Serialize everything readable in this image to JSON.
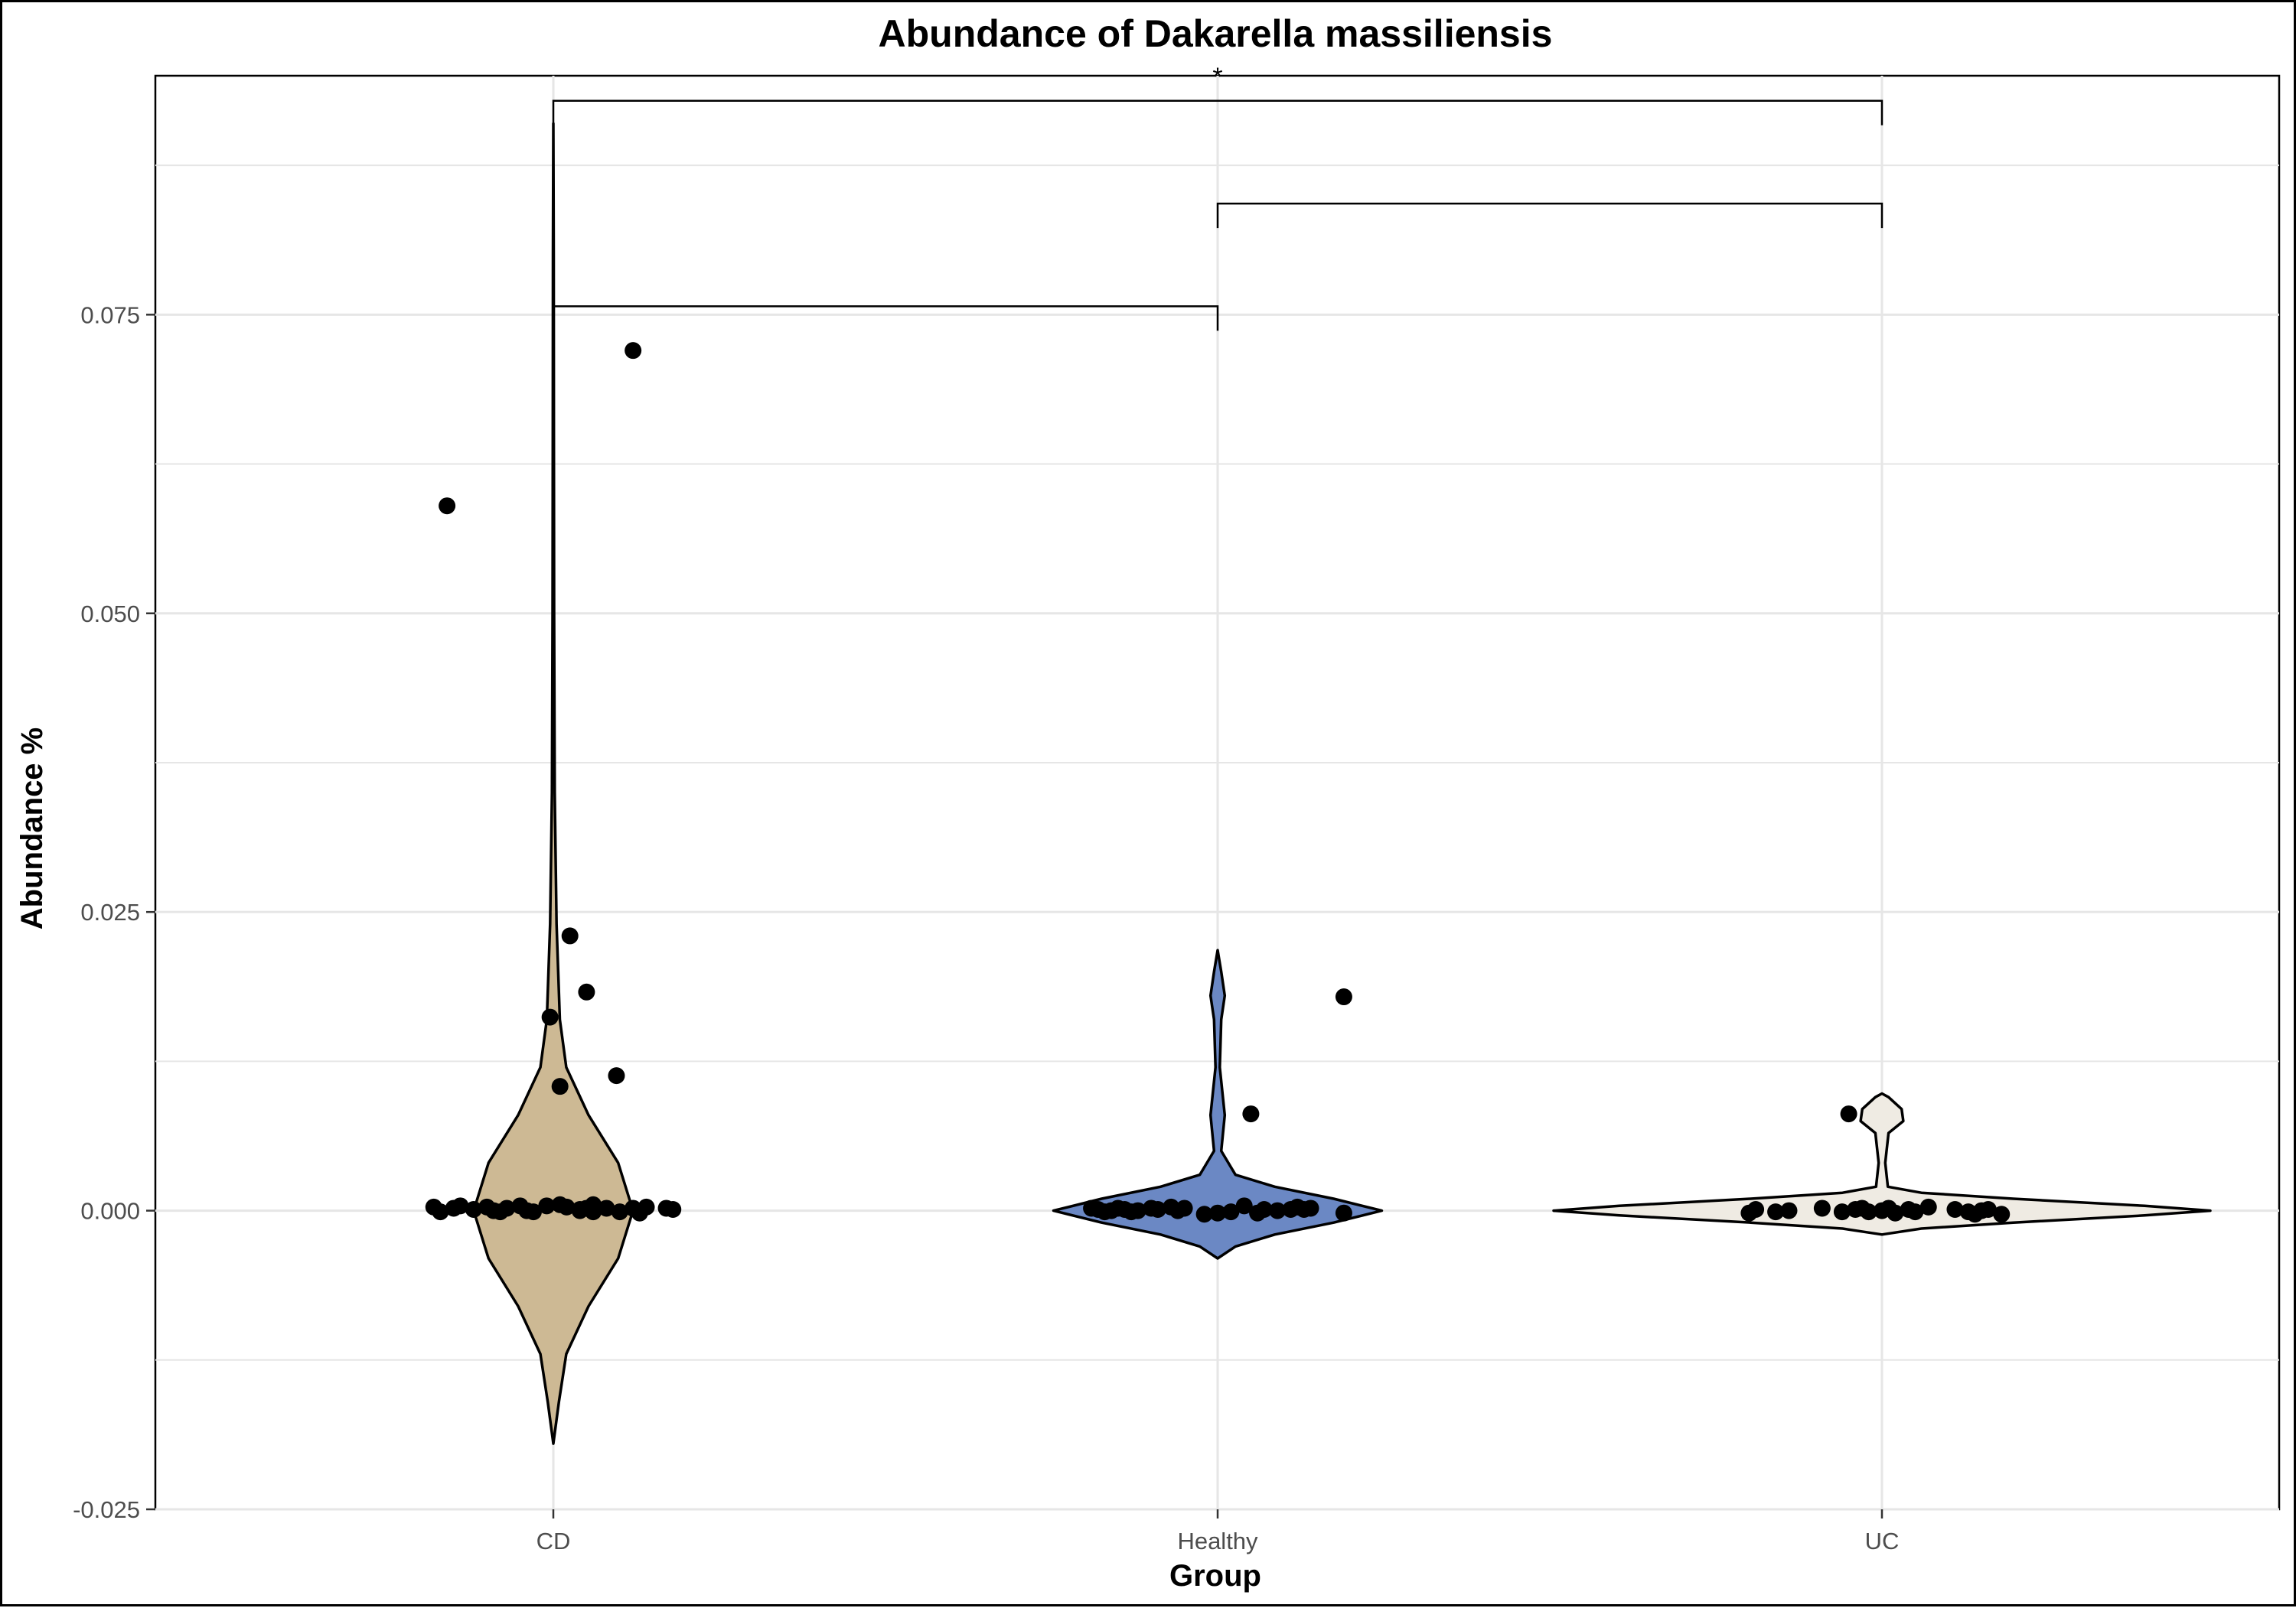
{
  "chart_data": {
    "type": "violin",
    "title": "Abundance of Dakarella massiliensis",
    "xlabel": "Group",
    "ylabel": "Abundance %",
    "categories": [
      "CD",
      "Healthy",
      "UC"
    ],
    "ylim": [
      -0.025,
      0.095
    ],
    "yticks": [
      -0.025,
      0.0,
      0.025,
      0.05,
      0.075
    ],
    "ytick_labels": [
      "-0.025",
      "0.000",
      "0.025",
      "0.050",
      "0.075"
    ],
    "grid": true,
    "legend": "none",
    "colors": {
      "CD": "#cdb994",
      "Healthy": "#6b88c4",
      "UC": "#efebe3"
    },
    "violins": [
      {
        "category": "CD",
        "profile": [
          [
            -0.0195,
            0.0
          ],
          [
            -0.016,
            0.06
          ],
          [
            -0.012,
            0.14
          ],
          [
            -0.008,
            0.38
          ],
          [
            -0.004,
            0.7
          ],
          [
            0.0,
            0.86
          ],
          [
            0.004,
            0.7
          ],
          [
            0.008,
            0.38
          ],
          [
            0.012,
            0.14
          ],
          [
            0.016,
            0.07
          ],
          [
            0.024,
            0.035
          ],
          [
            0.035,
            0.015
          ],
          [
            0.05,
            0.008
          ],
          [
            0.065,
            0.006
          ],
          [
            0.08,
            0.004
          ],
          [
            0.091,
            0.0
          ]
        ]
      },
      {
        "category": "Healthy",
        "profile": [
          [
            -0.004,
            0.0
          ],
          [
            -0.003,
            0.1
          ],
          [
            -0.002,
            0.32
          ],
          [
            -0.001,
            0.65
          ],
          [
            0.0,
            0.92
          ],
          [
            0.001,
            0.65
          ],
          [
            0.002,
            0.32
          ],
          [
            0.003,
            0.1
          ],
          [
            0.005,
            0.02
          ],
          [
            0.008,
            0.04
          ],
          [
            0.012,
            0.012
          ],
          [
            0.016,
            0.02
          ],
          [
            0.018,
            0.04
          ],
          [
            0.02,
            0.02
          ],
          [
            0.0218,
            0.0
          ]
        ]
      },
      {
        "category": "UC",
        "profile": [
          [
            -0.002,
            0.0
          ],
          [
            -0.0015,
            0.12
          ],
          [
            -0.001,
            0.4
          ],
          [
            -0.0004,
            0.8
          ],
          [
            0.0,
            1.0
          ],
          [
            0.0004,
            0.8
          ],
          [
            0.001,
            0.4
          ],
          [
            0.0015,
            0.12
          ],
          [
            0.002,
            0.018
          ],
          [
            0.004,
            0.01
          ],
          [
            0.0065,
            0.02
          ],
          [
            0.0075,
            0.065
          ],
          [
            0.0085,
            0.06
          ],
          [
            0.0095,
            0.02
          ],
          [
            0.0098,
            0.0
          ]
        ]
      }
    ],
    "points": {
      "CD": [
        [
          -0.18,
          0.0003
        ],
        [
          -0.17,
          -0.0001
        ],
        [
          -0.15,
          0.0002
        ],
        [
          -0.14,
          0.0004
        ],
        [
          -0.12,
          0.0001
        ],
        [
          -0.1,
          0.0003
        ],
        [
          -0.09,
          0.0
        ],
        [
          -0.08,
          -0.0001
        ],
        [
          -0.07,
          0.0002
        ],
        [
          -0.05,
          0.0004
        ],
        [
          -0.04,
          0.0
        ],
        [
          -0.03,
          -0.0001
        ],
        [
          -0.01,
          0.0004
        ],
        [
          0.01,
          0.0005
        ],
        [
          0.02,
          0.0003
        ],
        [
          0.04,
          0.0001
        ],
        [
          0.05,
          0.0002
        ],
        [
          0.06,
          0.0005
        ],
        [
          0.08,
          0.0002
        ],
        [
          0.1,
          -0.0001
        ],
        [
          0.12,
          0.0002
        ],
        [
          0.13,
          -0.0002
        ],
        [
          0.14,
          0.0003
        ],
        [
          0.17,
          0.0002
        ],
        [
          0.18,
          0.0001
        ],
        [
          0.06,
          -0.0001
        ],
        [
          0.04,
          0.0
        ],
        [
          -0.16,
          0.059
        ],
        [
          0.12,
          0.072
        ],
        [
          0.025,
          0.023
        ],
        [
          0.05,
          0.0183
        ],
        [
          -0.005,
          0.0162
        ],
        [
          0.01,
          0.0104
        ],
        [
          0.095,
          0.0113
        ]
      ],
      "Healthy": [
        [
          -0.19,
          0.0002
        ],
        [
          -0.18,
          0.0001
        ],
        [
          -0.17,
          -0.0001
        ],
        [
          -0.16,
          0.0
        ],
        [
          -0.15,
          0.0002
        ],
        [
          -0.14,
          0.0001
        ],
        [
          -0.13,
          -0.0001
        ],
        [
          -0.12,
          0.0
        ],
        [
          -0.1,
          0.0002
        ],
        [
          -0.09,
          0.0001
        ],
        [
          -0.07,
          0.0003
        ],
        [
          -0.06,
          0.0
        ],
        [
          -0.05,
          0.0002
        ],
        [
          -0.02,
          -0.0003
        ],
        [
          0.0,
          -0.0002
        ],
        [
          0.02,
          -0.0001
        ],
        [
          0.04,
          0.0004
        ],
        [
          0.06,
          -0.0002
        ],
        [
          0.07,
          0.0001
        ],
        [
          0.09,
          0.0
        ],
        [
          0.11,
          0.0001
        ],
        [
          0.12,
          0.0003
        ],
        [
          0.13,
          0.0001
        ],
        [
          0.14,
          0.0002
        ],
        [
          0.19,
          -0.0002
        ],
        [
          0.05,
          0.0081
        ],
        [
          0.19,
          0.0179
        ]
      ],
      "UC": [
        [
          -0.2,
          -0.0002
        ],
        [
          -0.19,
          0.0001
        ],
        [
          -0.16,
          -0.0001
        ],
        [
          -0.14,
          0.0
        ],
        [
          -0.09,
          0.0002
        ],
        [
          -0.06,
          -0.0001
        ],
        [
          -0.04,
          0.0001
        ],
        [
          -0.03,
          0.0002
        ],
        [
          -0.02,
          -0.0001
        ],
        [
          0.0,
          0.0
        ],
        [
          0.01,
          0.0002
        ],
        [
          0.02,
          -0.0002
        ],
        [
          0.04,
          0.0001
        ],
        [
          0.05,
          -0.0001
        ],
        [
          0.07,
          0.0003
        ],
        [
          0.11,
          0.0001
        ],
        [
          0.13,
          -0.0001
        ],
        [
          0.14,
          -0.0003
        ],
        [
          0.15,
          0.0
        ],
        [
          0.16,
          0.0001
        ],
        [
          0.18,
          -0.0003
        ],
        [
          -0.05,
          0.0081
        ]
      ]
    },
    "comparisons": [
      {
        "from": "CD",
        "to": "Healthy",
        "y": 0.0757,
        "label": ""
      },
      {
        "from": "Healthy",
        "to": "UC",
        "y": 0.0843,
        "label": ""
      },
      {
        "from": "CD",
        "to": "UC",
        "y": 0.0929,
        "label": "*"
      }
    ]
  }
}
